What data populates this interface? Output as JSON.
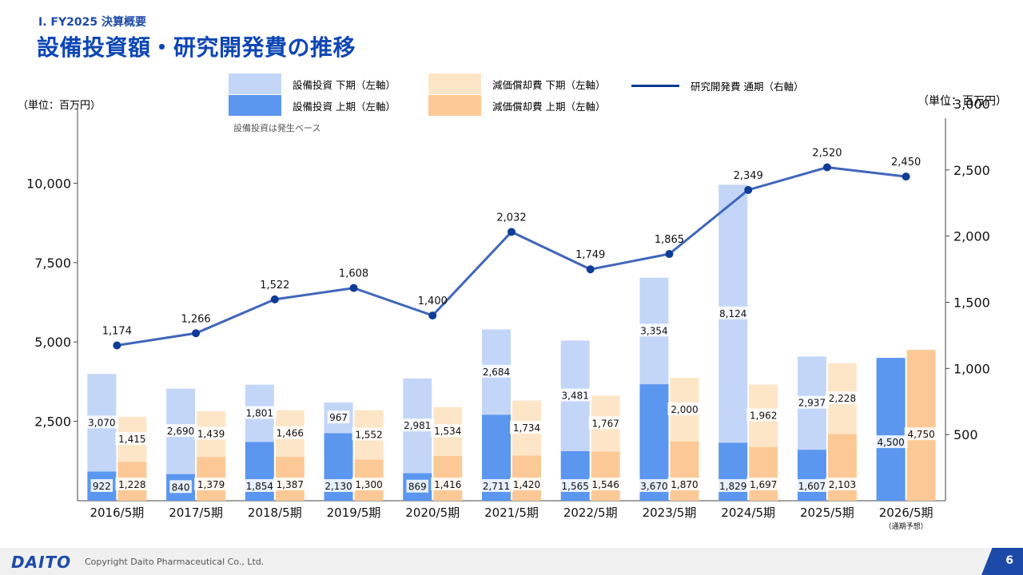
{
  "header": {
    "section": "Ⅰ. FY2025 決算概要",
    "title": "設備投資額・研究開発費の推移"
  },
  "legend": {
    "capex_second": "設備投資 下期（左軸）",
    "capex_first": "設備投資 上期（左軸）",
    "dep_second": "減価償却費 下期（左軸）",
    "dep_first": "減価償却費 上期（左軸）",
    "rd": "研究開発費 通期（右軸）"
  },
  "unit_left": "（単位：百万円）",
  "unit_right": "（単位：百万円）",
  "note": "設備投資は発生ベース",
  "footer": {
    "logo": "DAITO",
    "copyright": "Copyright  Daito Pharmaceutical Co., Ltd.",
    "page": "6"
  },
  "colors": {
    "capex_first": "#5b96ef",
    "capex_second": "#c3d6f8",
    "dep_first": "#fcc996",
    "dep_second": "#fde6c8",
    "rd_line": "#4066bb",
    "rd_point": "#0e3c96",
    "forecast_capex": "#5b96ef",
    "forecast_dep": "#fcc996"
  },
  "chart_data": {
    "type": "bar+line",
    "categories": [
      "2016/5期",
      "2017/5期",
      "2018/5期",
      "2019/5期",
      "2020/5期",
      "2021/5期",
      "2022/5期",
      "2023/5期",
      "2024/5期",
      "2025/5期",
      "2026/5期"
    ],
    "category_note": {
      "index": 10,
      "text": "（通期予想）"
    },
    "left_axis": {
      "min": 0,
      "max": 12500,
      "ticks": [
        2500,
        5000,
        7500,
        10000
      ],
      "tick_labels": [
        "2,500",
        "5,000",
        "7,500",
        "10,000"
      ]
    },
    "right_axis": {
      "min": 0,
      "max": 3000,
      "ticks": [
        500,
        1000,
        1500,
        2000,
        2500,
        3000
      ],
      "tick_labels": [
        "500",
        "1,000",
        "1,500",
        "2,000",
        "2,500",
        "3,000"
      ]
    },
    "capex_first": [
      922,
      840,
      1854,
      2130,
      869,
      2711,
      1565,
      3670,
      1829,
      1607,
      4500
    ],
    "capex_second": [
      3070,
      2690,
      1801,
      967,
      2981,
      2684,
      3481,
      3354,
      8124,
      2937,
      0
    ],
    "dep_first": [
      1228,
      1379,
      1387,
      1300,
      1416,
      1420,
      1546,
      1870,
      1697,
      2103,
      4750
    ],
    "dep_second": [
      1415,
      1439,
      1466,
      1552,
      1534,
      1734,
      1767,
      2000,
      1962,
      2228,
      0
    ],
    "labels": {
      "capex_first": [
        "922",
        "840",
        "1,854",
        "2,130",
        "869",
        "2,711",
        "1,565",
        "3,670",
        "1,829",
        "1,607",
        "4,500"
      ],
      "capex_second": [
        "3,070",
        "2,690",
        "1,801",
        "967",
        "2,981",
        "2,684",
        "3,481",
        "3,354",
        "8,124",
        "2,937",
        ""
      ],
      "dep_first": [
        "1,228",
        "1,379",
        "1,387",
        "1,300",
        "1,416",
        "1,420",
        "1,546",
        "1,870",
        "1,697",
        "2,103",
        "4,750"
      ],
      "dep_second": [
        "1,415",
        "1,439",
        "1,466",
        "1,552",
        "1,534",
        "1,734",
        "1,767",
        "2,000",
        "1,962",
        "2,228",
        ""
      ],
      "rd": [
        "1,174",
        "1,266",
        "1,522",
        "1,608",
        "1,400",
        "2,032",
        "1,749",
        "1,865",
        "2,349",
        "2,520",
        "2,450"
      ]
    },
    "rd": [
      1174,
      1266,
      1522,
      1608,
      1400,
      2032,
      1749,
      1865,
      2349,
      2520,
      2450
    ]
  }
}
